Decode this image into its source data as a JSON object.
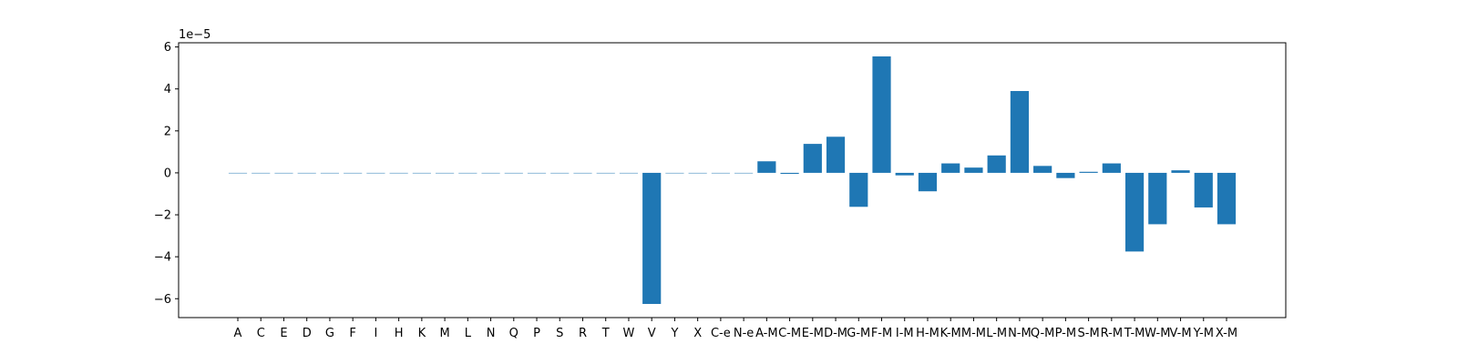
{
  "chart_data": {
    "type": "bar",
    "title": "",
    "xlabel": "",
    "ylabel": "",
    "y_offset_label": "1e−5",
    "ylim": [
      -6.9,
      6.2
    ],
    "yticks": [
      -6,
      -4,
      -2,
      0,
      2,
      4,
      6
    ],
    "ytick_labels": [
      "−6",
      "−4",
      "−2",
      "0",
      "2",
      "4",
      "6"
    ],
    "grid": false,
    "bar_color": "#1f77b4",
    "categories": [
      "A",
      "C",
      "E",
      "D",
      "G",
      "F",
      "I",
      "H",
      "K",
      "M",
      "L",
      "N",
      "Q",
      "P",
      "S",
      "R",
      "T",
      "W",
      "V",
      "Y",
      "X",
      "C-e",
      "N-e",
      "A-M",
      "C-M",
      "E-M",
      "D-M",
      "G-M",
      "F-M",
      "I-M",
      "H-M",
      "K-M",
      "M-M",
      "L-M",
      "N-M",
      "Q-M",
      "P-M",
      "S-M",
      "R-M",
      "T-M",
      "W-M",
      "V-M",
      "Y-M",
      "X-M"
    ],
    "values": [
      0,
      0,
      0,
      0,
      0,
      0,
      0,
      0,
      0,
      0,
      0,
      0,
      0,
      0,
      0,
      0,
      0,
      0,
      -6.25,
      0,
      0,
      0,
      0,
      0.55,
      -0.05,
      1.38,
      1.72,
      -1.62,
      5.55,
      -0.12,
      -0.88,
      0.45,
      0.25,
      0.83,
      3.9,
      0.33,
      -0.25,
      0.05,
      0.45,
      -3.75,
      -2.45,
      0.12,
      -1.65,
      -2.45
    ]
  }
}
